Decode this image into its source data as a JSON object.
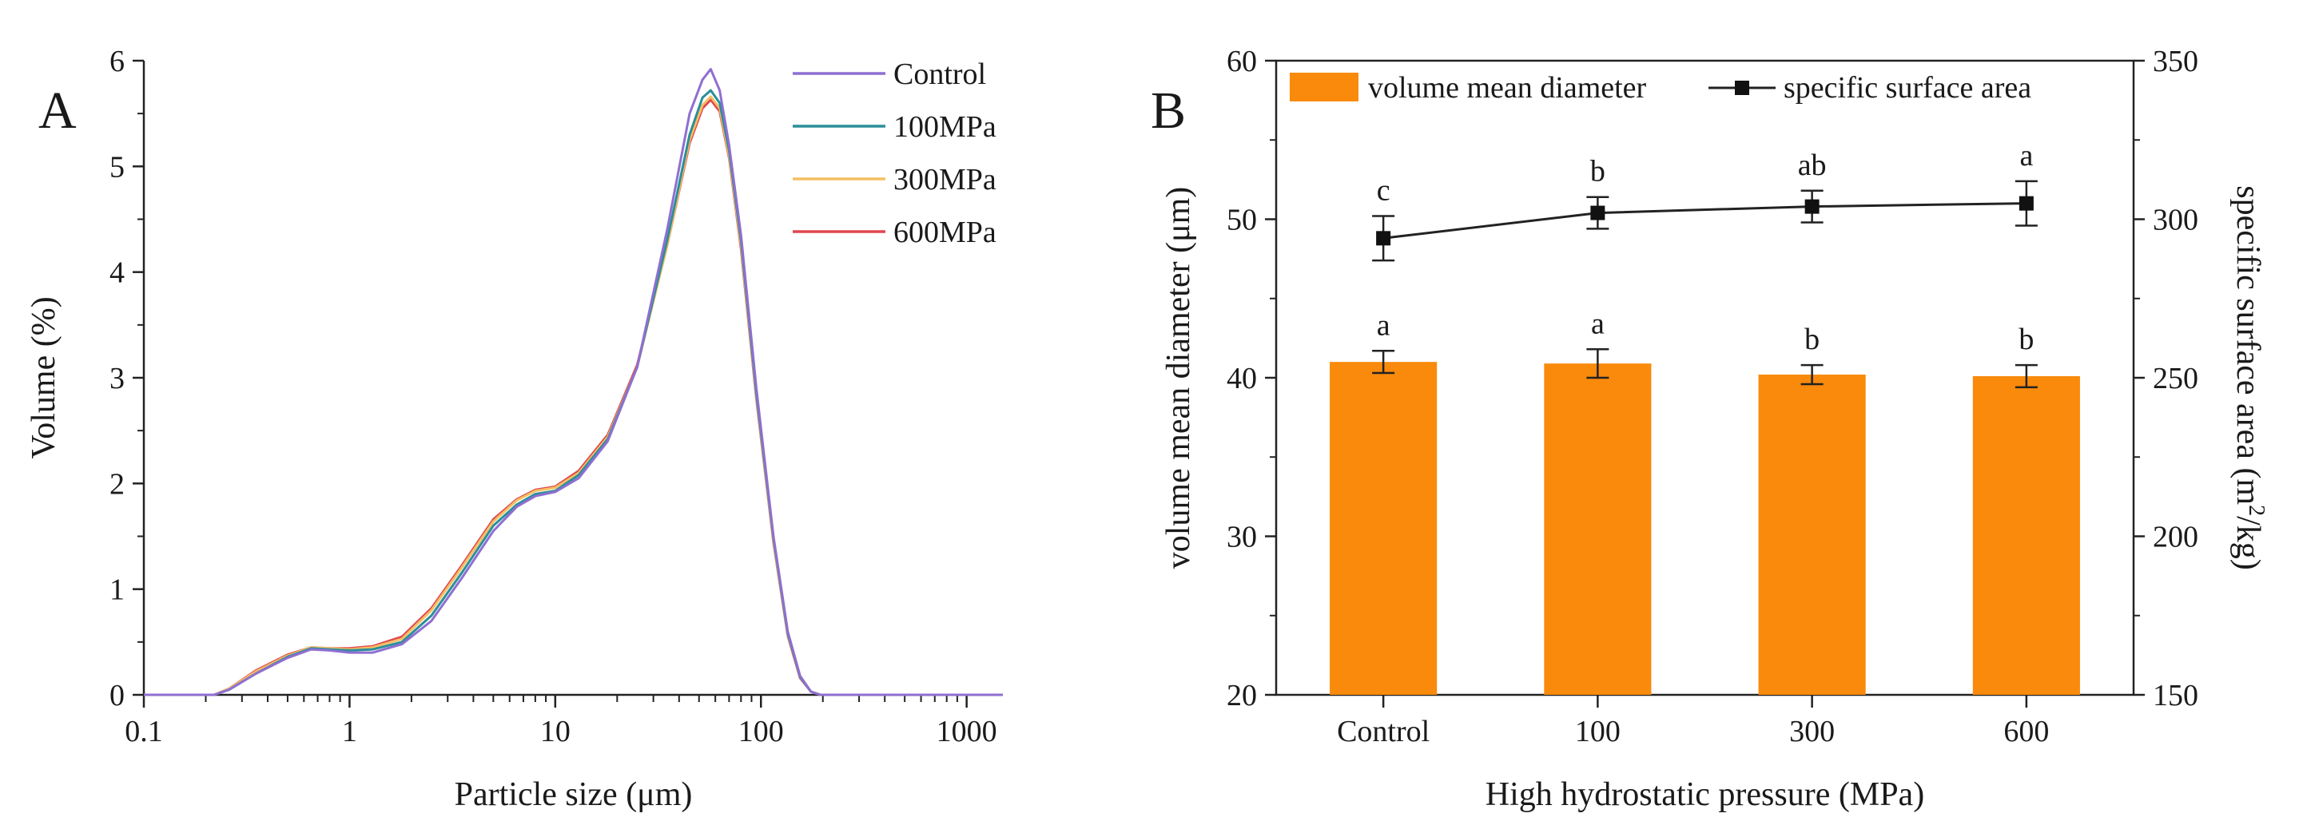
{
  "chart_data": [
    {
      "panel": "A",
      "type": "line",
      "xscale": "log",
      "xlabel": "Particle size (μm)",
      "ylabel": "Volume (%)",
      "xlim": [
        0.1,
        1500
      ],
      "ylim": [
        0,
        6
      ],
      "xticks": [
        "0.1",
        "1",
        "10",
        "100",
        "1000"
      ],
      "yticks": [
        "0",
        "1",
        "2",
        "3",
        "4",
        "5",
        "6"
      ],
      "legend_position": "top-right",
      "series": [
        {
          "name": "Control",
          "color": "#8f6fd1",
          "x": [
            0.1,
            0.22,
            0.26,
            0.35,
            0.5,
            0.65,
            0.8,
            1.0,
            1.3,
            1.8,
            2.5,
            3.5,
            5,
            6.5,
            8,
            10,
            13,
            18,
            25,
            35,
            45,
            52,
            57,
            63,
            70,
            80,
            95,
            115,
            135,
            155,
            175,
            195,
            1500
          ],
          "y": [
            0,
            0,
            0.05,
            0.2,
            0.35,
            0.43,
            0.42,
            0.4,
            0.4,
            0.48,
            0.7,
            1.1,
            1.55,
            1.78,
            1.88,
            1.92,
            2.05,
            2.4,
            3.1,
            4.4,
            5.5,
            5.82,
            5.92,
            5.72,
            5.2,
            4.35,
            2.9,
            1.5,
            0.6,
            0.18,
            0.03,
            0,
            0
          ]
        },
        {
          "name": "100MPa",
          "color": "#2a8f9a",
          "x": [
            0.1,
            0.22,
            0.26,
            0.35,
            0.5,
            0.65,
            0.8,
            1.0,
            1.3,
            1.8,
            2.5,
            3.5,
            5,
            6.5,
            8,
            10,
            13,
            18,
            25,
            35,
            45,
            52,
            57,
            63,
            70,
            80,
            95,
            115,
            135,
            155,
            175,
            195,
            1500
          ],
          "y": [
            0,
            0,
            0.05,
            0.2,
            0.36,
            0.44,
            0.43,
            0.42,
            0.43,
            0.5,
            0.75,
            1.15,
            1.6,
            1.8,
            1.9,
            1.93,
            2.08,
            2.42,
            3.1,
            4.3,
            5.3,
            5.65,
            5.72,
            5.6,
            5.15,
            4.3,
            2.85,
            1.48,
            0.58,
            0.17,
            0.03,
            0,
            0
          ]
        },
        {
          "name": "300MPa",
          "color": "#f5bf63",
          "x": [
            0.1,
            0.22,
            0.26,
            0.35,
            0.5,
            0.65,
            0.8,
            1.0,
            1.3,
            1.8,
            2.5,
            3.5,
            5,
            6.5,
            8,
            10,
            13,
            18,
            25,
            35,
            45,
            52,
            57,
            63,
            70,
            80,
            95,
            115,
            135,
            155,
            175,
            195,
            1500
          ],
          "y": [
            0,
            0,
            0.06,
            0.22,
            0.37,
            0.45,
            0.44,
            0.43,
            0.45,
            0.53,
            0.8,
            1.2,
            1.64,
            1.84,
            1.93,
            1.96,
            2.1,
            2.44,
            3.1,
            4.25,
            5.25,
            5.58,
            5.66,
            5.55,
            5.1,
            4.25,
            2.82,
            1.45,
            0.57,
            0.17,
            0.03,
            0,
            0
          ]
        },
        {
          "name": "600MPa",
          "color": "#e0474f",
          "x": [
            0.1,
            0.22,
            0.26,
            0.35,
            0.5,
            0.65,
            0.8,
            1.0,
            1.3,
            1.8,
            2.5,
            3.5,
            5,
            6.5,
            8,
            10,
            13,
            18,
            25,
            35,
            45,
            52,
            57,
            63,
            70,
            80,
            95,
            115,
            135,
            155,
            175,
            195,
            1500
          ],
          "y": [
            0,
            0,
            0.06,
            0.23,
            0.38,
            0.45,
            0.44,
            0.44,
            0.46,
            0.55,
            0.82,
            1.22,
            1.66,
            1.85,
            1.94,
            1.97,
            2.12,
            2.46,
            3.12,
            4.25,
            5.22,
            5.55,
            5.63,
            5.52,
            5.08,
            4.22,
            2.8,
            1.44,
            0.56,
            0.16,
            0.03,
            0,
            0
          ]
        }
      ]
    },
    {
      "panel": "B",
      "type": "bar",
      "xlabel": "High hydrostatic pressure (MPa)",
      "ylabel": "volume mean diameter (μm)",
      "y2label": "specific surface area (m²/kg)",
      "categories": [
        "Control",
        "100",
        "300",
        "600"
      ],
      "ylim": [
        20,
        60
      ],
      "y2lim": [
        150,
        350
      ],
      "yticks": [
        "20",
        "30",
        "40",
        "50",
        "60"
      ],
      "y2ticks": [
        "150",
        "200",
        "250",
        "300",
        "350"
      ],
      "legend_position": "top",
      "bar_color": "#f98a0c",
      "series": [
        {
          "name": "volume mean diameter",
          "axis": "left",
          "type": "bar",
          "values": [
            41.0,
            40.9,
            40.2,
            40.1
          ],
          "errors": [
            0.7,
            0.9,
            0.6,
            0.7
          ],
          "letters": [
            "a",
            "a",
            "b",
            "b"
          ]
        },
        {
          "name": "specific surface area",
          "axis": "right",
          "type": "line-square",
          "values": [
            294,
            302,
            304,
            305
          ],
          "errors": [
            7,
            5,
            5,
            7
          ],
          "letters": [
            "c",
            "b",
            "ab",
            "a"
          ]
        }
      ]
    }
  ]
}
